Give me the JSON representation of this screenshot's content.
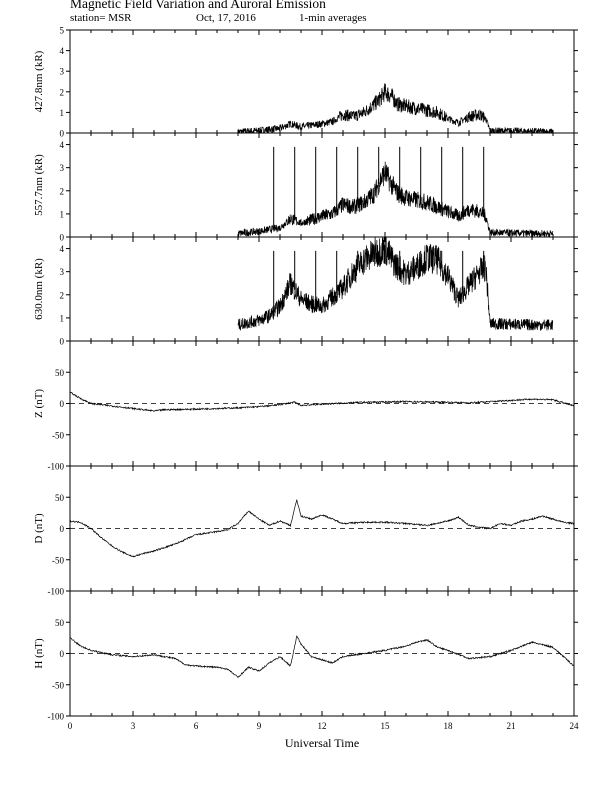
{
  "header": {
    "title": "Magnetic Field Variation and Auroral Emission",
    "station": "station= MSR",
    "date": "Oct, 17, 2016",
    "averaging": "1-min averages"
  },
  "chart_data": [
    {
      "type": "line",
      "ylabel": "427.8nm (kR)",
      "ylim": [
        0,
        5
      ],
      "yticks": [
        0,
        1,
        2,
        3,
        4,
        5
      ],
      "xlim": [
        0,
        24
      ],
      "series": [
        {
          "x": [
            8,
            9,
            10,
            10.5,
            11,
            12,
            12.5,
            13,
            13.5,
            14,
            14.5,
            14.8,
            15,
            15.3,
            15.6,
            16,
            16.5,
            17,
            17.5,
            18,
            18.5,
            19,
            19.5,
            19.8,
            20,
            22,
            23
          ],
          "y": [
            0.05,
            0.12,
            0.22,
            0.45,
            0.3,
            0.45,
            0.55,
            0.9,
            0.8,
            1.0,
            1.4,
            1.7,
            2.0,
            1.8,
            1.4,
            1.3,
            1.2,
            1.1,
            1.0,
            0.7,
            0.5,
            0.8,
            0.9,
            0.7,
            0.1,
            0.08,
            0.05
          ]
        }
      ],
      "spikes": []
    },
    {
      "type": "line",
      "ylabel": "557.7nm (kR)",
      "ylim": [
        0,
        4.5
      ],
      "yticks": [
        0,
        1,
        2,
        3,
        4
      ],
      "xlim": [
        0,
        24
      ],
      "series": [
        {
          "x": [
            8,
            9,
            10,
            10.5,
            11,
            12,
            12.5,
            13,
            13.5,
            14,
            14.5,
            14.8,
            15,
            15.3,
            15.6,
            16,
            16.5,
            17,
            17.5,
            18,
            18.5,
            19,
            19.5,
            19.8,
            20,
            22,
            23
          ],
          "y": [
            0.15,
            0.25,
            0.4,
            0.8,
            0.6,
            0.9,
            1.0,
            1.4,
            1.3,
            1.5,
            1.9,
            2.5,
            2.8,
            2.3,
            1.9,
            1.7,
            1.6,
            1.5,
            1.3,
            1.1,
            0.9,
            1.2,
            1.1,
            0.9,
            0.2,
            0.15,
            0.15
          ]
        }
      ],
      "spikes": [
        9.7,
        10.7,
        11.7,
        12.7,
        13.7,
        14.7,
        15.7,
        16.7,
        17.7,
        18.7,
        19.7
      ]
    },
    {
      "type": "line",
      "ylabel": "630.0nm (kR)",
      "ylim": [
        0,
        4.5
      ],
      "yticks": [
        0,
        1,
        2,
        3,
        4
      ],
      "xlim": [
        0,
        24
      ],
      "series": [
        {
          "x": [
            8,
            9,
            9.5,
            10,
            10.5,
            11,
            11.5,
            12,
            12.5,
            13,
            13.5,
            14,
            14.5,
            15,
            15.5,
            16,
            16.5,
            17,
            17.5,
            18,
            18.5,
            19,
            19.5,
            19.8,
            20,
            22,
            23
          ],
          "y": [
            0.7,
            0.9,
            1.1,
            1.5,
            2.5,
            1.8,
            1.6,
            1.5,
            1.9,
            2.3,
            3.0,
            3.5,
            3.8,
            4.0,
            3.3,
            2.9,
            3.2,
            3.6,
            3.5,
            2.8,
            1.8,
            2.4,
            3.0,
            3.2,
            0.75,
            0.7,
            0.7
          ]
        }
      ],
      "spikes": [
        9.7,
        10.7,
        11.7,
        12.7,
        13.7,
        14.7,
        15.7,
        16.7,
        17.7,
        18.7,
        19.7
      ]
    },
    {
      "type": "line",
      "ylabel": "Z (nT)",
      "ylim": [
        -100,
        100
      ],
      "yticks": [
        -100,
        -50,
        0,
        50
      ],
      "xlim": [
        0,
        24
      ],
      "reference_line": 0,
      "series": [
        {
          "x": [
            0,
            0.5,
            1,
            2,
            3,
            4,
            4.5,
            6,
            8,
            9,
            9.7,
            10.7,
            11,
            12,
            14,
            16,
            18,
            19,
            20,
            21,
            22,
            23,
            24
          ],
          "y": [
            18,
            8,
            0,
            -4,
            -8,
            -12,
            -10,
            -9,
            -7,
            -5,
            -3,
            2,
            -3,
            -1,
            2,
            3,
            2,
            1,
            3,
            5,
            7,
            6,
            -4
          ]
        }
      ],
      "spikes": []
    },
    {
      "type": "line",
      "ylabel": "D (nT)",
      "ylim": [
        -100,
        100
      ],
      "yticks": [
        -100,
        -50,
        0,
        50
      ],
      "xlim": [
        0,
        24
      ],
      "reference_line": 0,
      "series": [
        {
          "x": [
            0,
            0.5,
            1,
            1.5,
            2,
            2.5,
            3,
            3.5,
            4,
            5,
            6,
            7,
            7.5,
            8,
            8.5,
            9,
            9.5,
            10,
            10.5,
            10.8,
            11,
            11.5,
            12,
            12.5,
            13,
            14,
            15,
            16,
            17,
            18,
            18.5,
            19,
            19.5,
            20,
            20.5,
            21,
            21.5,
            22,
            22.5,
            23,
            23.5,
            24
          ],
          "y": [
            12,
            10,
            0,
            -15,
            -28,
            -38,
            -45,
            -40,
            -36,
            -25,
            -10,
            -5,
            -2,
            8,
            28,
            15,
            5,
            12,
            5,
            46,
            20,
            15,
            22,
            15,
            8,
            10,
            10,
            8,
            5,
            12,
            18,
            5,
            2,
            0,
            8,
            5,
            12,
            15,
            20,
            15,
            10,
            8
          ]
        }
      ],
      "spikes": []
    },
    {
      "type": "line",
      "ylabel": "H (nT)",
      "ylim": [
        -100,
        100
      ],
      "yticks": [
        -100,
        -50,
        0,
        50
      ],
      "xlim": [
        0,
        24
      ],
      "xticks": [
        0,
        3,
        6,
        9,
        12,
        15,
        18,
        21,
        24
      ],
      "xlabel": "Universal Time",
      "reference_line": 0,
      "series": [
        {
          "x": [
            0,
            0.5,
            1,
            2,
            3,
            4,
            5,
            5.5,
            6,
            7,
            7.5,
            8,
            8.5,
            9,
            9.5,
            10,
            10.5,
            10.8,
            11,
            11.5,
            12,
            12.5,
            13,
            14,
            15,
            16,
            16.5,
            17,
            17.5,
            18,
            19,
            20,
            21,
            22,
            23,
            23.5,
            24
          ],
          "y": [
            25,
            12,
            5,
            -2,
            -5,
            -2,
            -8,
            -18,
            -20,
            -22,
            -25,
            -38,
            -22,
            -28,
            -15,
            -5,
            -20,
            28,
            15,
            -5,
            -10,
            -15,
            -5,
            0,
            5,
            12,
            18,
            22,
            10,
            5,
            -8,
            -5,
            5,
            18,
            10,
            -5,
            -20
          ]
        }
      ],
      "spikes": []
    }
  ]
}
